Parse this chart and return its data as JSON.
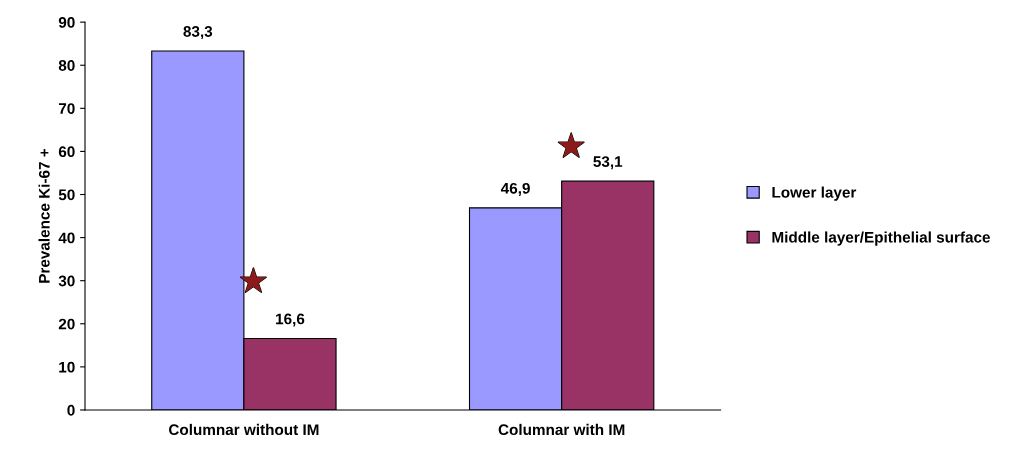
{
  "chart_data": {
    "type": "bar",
    "ylabel": "Prevalence Ki-67 +",
    "categories": [
      "Columnar without IM",
      "Columnar with IM"
    ],
    "series": [
      {
        "name": "Lower layer",
        "color": "#9999ff",
        "values": [
          83.3,
          46.9
        ],
        "value_labels": [
          "83,3",
          "46,9"
        ]
      },
      {
        "name": "Middle layer/Epithelial surface",
        "color": "#993366",
        "values": [
          16.6,
          53.1
        ],
        "value_labels": [
          "16,6",
          "53,1"
        ]
      }
    ],
    "annotations": [
      "★",
      "★"
    ],
    "ylim": [
      0,
      90
    ],
    "yticks": [
      0,
      10,
      20,
      30,
      40,
      50,
      60,
      70,
      80,
      90
    ],
    "grid": false,
    "legend": "right"
  }
}
